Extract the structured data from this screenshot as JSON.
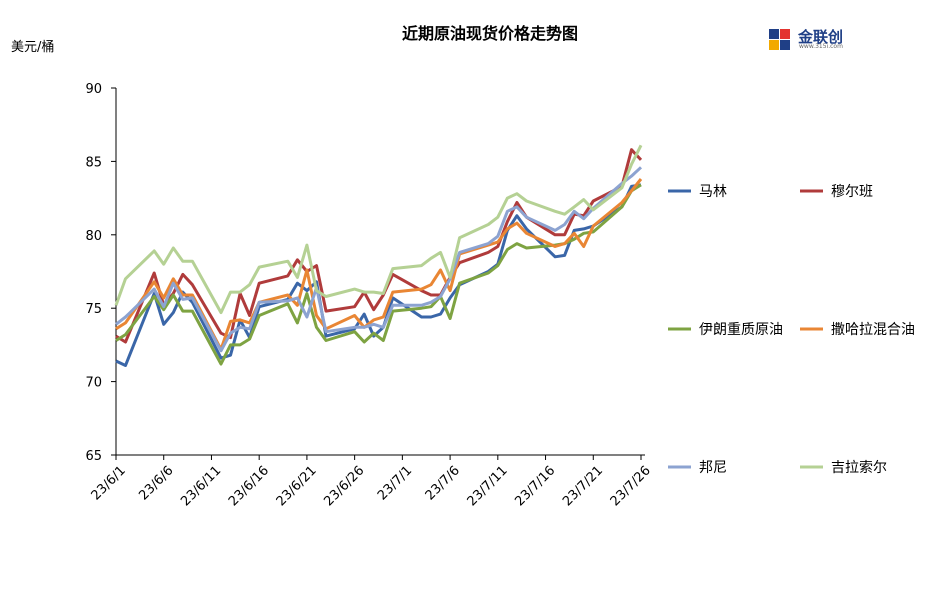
{
  "chart_data": {
    "type": "line",
    "title": "近期原油现货价格走势图",
    "ylabel": "美元/桶",
    "ylim": [
      65,
      90
    ],
    "yticks": [
      65,
      70,
      75,
      80,
      85,
      90
    ],
    "xticks": [
      "23/6/1",
      "23/6/6",
      "23/6/11",
      "23/6/16",
      "23/6/21",
      "23/6/26",
      "23/7/1",
      "23/7/6",
      "23/7/11",
      "23/7/16",
      "23/7/21",
      "23/7/26"
    ],
    "x": [
      "2023-06-01",
      "2023-06-02",
      "2023-06-05",
      "2023-06-06",
      "2023-06-07",
      "2023-06-08",
      "2023-06-09",
      "2023-06-12",
      "2023-06-13",
      "2023-06-14",
      "2023-06-15",
      "2023-06-16",
      "2023-06-19",
      "2023-06-20",
      "2023-06-21",
      "2023-06-22",
      "2023-06-23",
      "2023-06-26",
      "2023-06-27",
      "2023-06-28",
      "2023-06-29",
      "2023-06-30",
      "2023-07-03",
      "2023-07-04",
      "2023-07-05",
      "2023-07-06",
      "2023-07-07",
      "2023-07-10",
      "2023-07-11",
      "2023-07-12",
      "2023-07-13",
      "2023-07-14",
      "2023-07-17",
      "2023-07-18",
      "2023-07-19",
      "2023-07-20",
      "2023-07-21",
      "2023-07-24",
      "2023-07-25",
      "2023-07-26"
    ],
    "series": [
      {
        "name": "马林",
        "color": "#3a66a8",
        "values": [
          71.4,
          71.1,
          76.0,
          73.9,
          74.7,
          76.1,
          75.4,
          71.6,
          71.8,
          74.2,
          73.0,
          75.1,
          75.6,
          76.7,
          76.2,
          76.8,
          73.1,
          73.6,
          74.6,
          73.1,
          73.7,
          75.7,
          74.4,
          74.4,
          74.6,
          75.7,
          76.6,
          77.5,
          78.0,
          80.3,
          81.3,
          80.4,
          78.5,
          78.6,
          80.3,
          80.4,
          80.6,
          81.9,
          83.3,
          83.4
        ]
      },
      {
        "name": "穆尔班",
        "color": "#b03b3b",
        "values": [
          73.1,
          72.7,
          77.4,
          75.2,
          76.0,
          77.3,
          76.6,
          73.3,
          73.0,
          76.0,
          74.5,
          76.7,
          77.2,
          78.3,
          77.5,
          77.9,
          74.8,
          75.1,
          76.1,
          74.9,
          75.9,
          77.3,
          76.2,
          75.9,
          75.9,
          77.1,
          78.1,
          78.8,
          79.2,
          80.9,
          82.2,
          81.2,
          80.0,
          80.0,
          81.4,
          81.3,
          82.3,
          83.3,
          85.8,
          85.1
        ]
      },
      {
        "name": "伊朗重质原油",
        "color": "#7ea342",
        "values": [
          72.8,
          73.2,
          75.8,
          74.9,
          75.9,
          74.8,
          74.8,
          71.2,
          72.5,
          72.5,
          72.9,
          74.5,
          75.3,
          74.0,
          76.0,
          73.7,
          72.8,
          73.4,
          72.7,
          73.3,
          72.8,
          74.8,
          75.0,
          75.1,
          75.8,
          74.3,
          76.7,
          77.4,
          77.9,
          79.0,
          79.4,
          79.1,
          79.3,
          79.4,
          79.7,
          80.1,
          80.2,
          81.9,
          83.0,
          83.4
        ]
      },
      {
        "name": "撒哈拉混合油",
        "color": "#e98634",
        "values": [
          73.6,
          74.0,
          76.8,
          75.7,
          77.0,
          75.9,
          75.9,
          72.2,
          74.1,
          74.2,
          74.0,
          75.4,
          75.9,
          75.2,
          77.6,
          74.5,
          73.6,
          74.5,
          73.7,
          74.2,
          74.4,
          76.1,
          76.3,
          76.6,
          77.6,
          76.2,
          78.7,
          79.3,
          79.5,
          80.4,
          80.8,
          80.1,
          79.2,
          79.4,
          80.1,
          79.2,
          80.6,
          82.2,
          83.0,
          83.8
        ]
      },
      {
        "name": "邦尼",
        "color": "#8ca3d1",
        "values": [
          73.9,
          74.4,
          76.3,
          75.1,
          76.7,
          75.6,
          75.7,
          72.1,
          73.3,
          73.7,
          73.6,
          75.4,
          75.5,
          75.7,
          74.4,
          76.4,
          73.4,
          73.7,
          73.7,
          73.9,
          73.7,
          75.2,
          75.2,
          75.4,
          75.8,
          77.0,
          78.8,
          79.4,
          79.9,
          81.6,
          81.9,
          81.2,
          80.3,
          80.7,
          81.6,
          81.1,
          81.8,
          83.5,
          84.0,
          84.6
        ]
      },
      {
        "name": "吉拉索尔",
        "color": "#b5d194",
        "values": [
          75.2,
          77.0,
          78.9,
          78.0,
          79.1,
          78.2,
          78.2,
          74.7,
          76.1,
          76.1,
          76.6,
          77.8,
          78.2,
          77.1,
          79.3,
          76.2,
          75.8,
          76.3,
          76.1,
          76.1,
          76.0,
          77.7,
          77.9,
          78.4,
          78.8,
          77.1,
          79.8,
          80.7,
          81.2,
          82.5,
          82.8,
          82.3,
          81.6,
          81.4,
          81.9,
          82.4,
          81.7,
          83.2,
          84.8,
          86.1
        ]
      }
    ]
  },
  "logo": {
    "brand": "金联创",
    "sub": "www.315i.com"
  }
}
